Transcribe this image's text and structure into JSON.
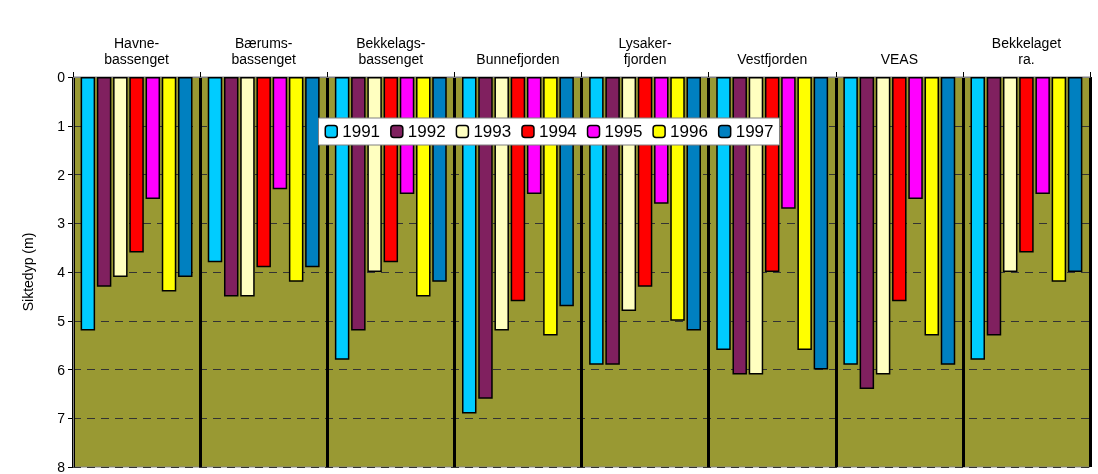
{
  "chart_data": {
    "type": "bar",
    "ylabel": "Siktedyp (m)",
    "categories": [
      "Havne-\nbassenget",
      "Bærums-\nbassenget",
      "Bekkelags-\nbassenget",
      "Bunnefjorden",
      "Lysaker-\nfjorden",
      "Vestfjorden",
      "VEAS",
      "Bekkelaget\nra."
    ],
    "series": [
      {
        "name": "1991",
        "color": "#00ccff",
        "values": [
          5.2,
          3.8,
          5.8,
          6.9,
          5.9,
          5.6,
          5.9,
          5.8
        ]
      },
      {
        "name": "1992",
        "color": "#80205f",
        "values": [
          4.3,
          4.5,
          5.2,
          6.6,
          5.9,
          6.1,
          6.4,
          5.3
        ]
      },
      {
        "name": "1993",
        "color": "#ffffc0",
        "values": [
          4.1,
          4.5,
          4.0,
          5.2,
          4.8,
          6.1,
          6.1,
          4.0
        ]
      },
      {
        "name": "1994",
        "color": "#ff0000",
        "values": [
          3.6,
          3.9,
          3.8,
          4.6,
          4.3,
          4.0,
          4.6,
          3.6
        ]
      },
      {
        "name": "1995",
        "color": "#ff00ff",
        "values": [
          2.5,
          2.3,
          2.4,
          2.4,
          2.6,
          2.7,
          2.5,
          2.4
        ]
      },
      {
        "name": "1996",
        "color": "#ffff00",
        "values": [
          4.4,
          4.2,
          4.5,
          5.3,
          5.0,
          5.6,
          5.3,
          4.2
        ]
      },
      {
        "name": "1997",
        "color": "#0080c0",
        "values": [
          4.1,
          3.9,
          4.2,
          4.7,
          5.2,
          6.0,
          5.9,
          4.0
        ]
      }
    ],
    "ylim": [
      8,
      0
    ],
    "yticks": [
      0,
      1,
      2,
      3,
      4,
      5,
      6,
      7,
      8
    ],
    "grid": "y",
    "legend": "top"
  }
}
